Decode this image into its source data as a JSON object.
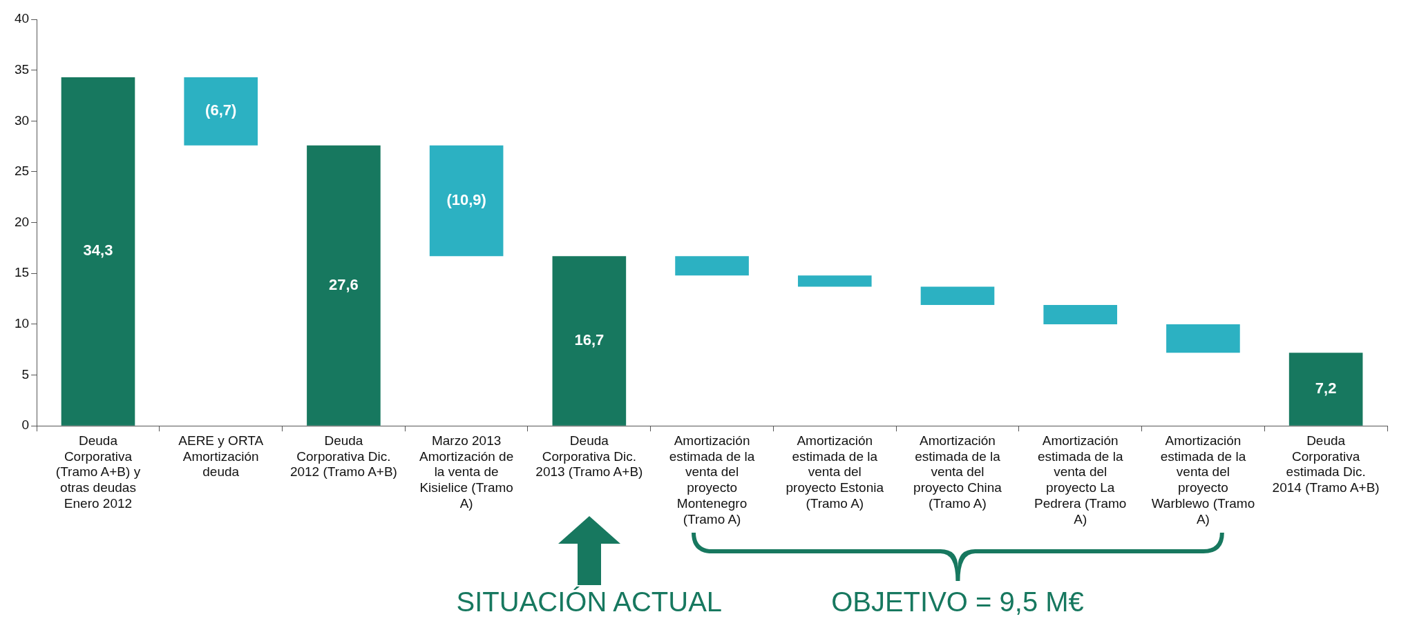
{
  "chart_data": {
    "type": "bar",
    "categories": [
      "Deuda Corporativa (Tramo A+B) y otras deudas Enero 2012",
      "AERE y ORTA Amortización deuda",
      "Deuda Corporativa Dic. 2012 (Tramo A+B)",
      "Marzo 2013 Amortización de la venta de Kisielice (Tramo A)",
      "Deuda Corporativa Dic. 2013 (Tramo A+B)",
      "Amortización estimada de la venta del proyecto Montenegro (Tramo A)",
      "Amortización estimada de la venta del proyecto Estonia (Tramo A)",
      "Amortización estimada de la venta del proyecto China (Tramo A)",
      "Amortización estimada de la venta del proyecto La Pedrera (Tramo A)",
      "Amortización estimada de la venta del proyecto Warblewo (Tramo A)",
      "Deuda Corporativa estimada Dic. 2014 (Tramo A+B)"
    ],
    "values": [
      34.3,
      -6.7,
      27.6,
      -10.9,
      16.7,
      -1.9,
      -1.1,
      -1.8,
      -1.9,
      -2.8,
      7.2
    ],
    "base": [
      0,
      34.3,
      0,
      27.6,
      0,
      16.7,
      14.8,
      13.7,
      11.9,
      10.0,
      0
    ],
    "colors": [
      "#17785f",
      "#2cb1c2",
      "#17785f",
      "#2cb1c2",
      "#17785f",
      "#2cb1c2",
      "#2cb1c2",
      "#2cb1c2",
      "#2cb1c2",
      "#2cb1c2",
      "#17785f"
    ],
    "value_labels": [
      "34,3",
      "(6,7)",
      "27,6",
      "(10,9)",
      "16,7",
      null,
      null,
      null,
      null,
      null,
      "7,2"
    ],
    "ylim": [
      0,
      40
    ],
    "yticks": [
      0,
      5,
      10,
      15,
      20,
      25,
      30,
      35,
      40
    ],
    "grid": false,
    "legend": false,
    "annotations": [
      "SITUACIÓN ACTUAL",
      "OBJETIVO = 9,5 M€"
    ]
  }
}
